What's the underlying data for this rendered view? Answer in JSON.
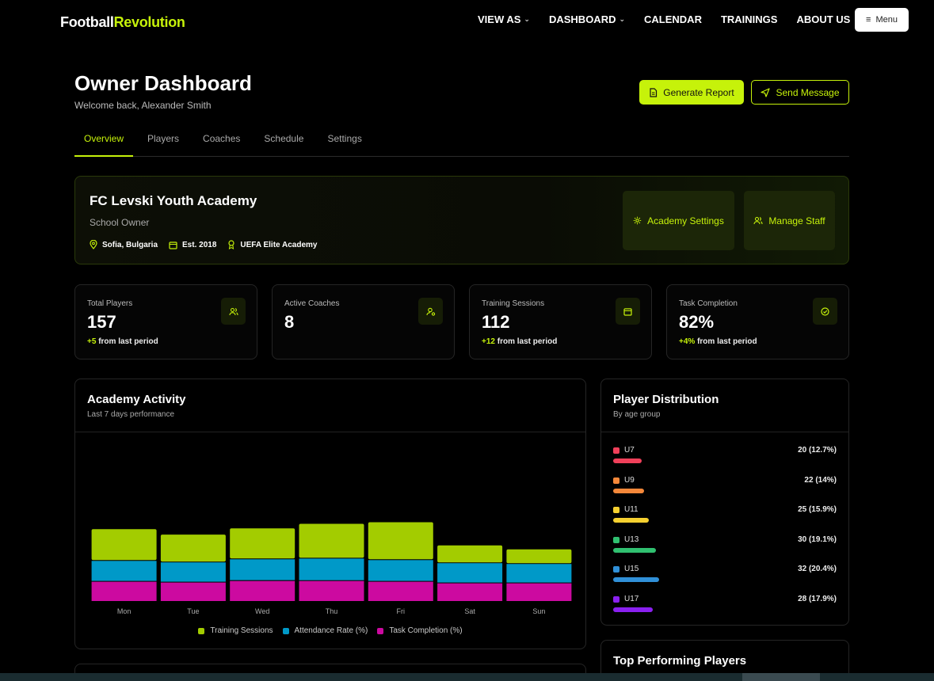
{
  "nav": {
    "logo_a": "Football",
    "logo_b": "Revolution",
    "links": [
      {
        "label": "VIEW AS",
        "dropdown": true
      },
      {
        "label": "DASHBOARD",
        "dropdown": true
      },
      {
        "label": "CALENDAR",
        "dropdown": false
      },
      {
        "label": "TRAININGS",
        "dropdown": false
      },
      {
        "label": "ABOUT US",
        "dropdown": false
      }
    ],
    "menu_label": "Menu"
  },
  "header": {
    "title": "Owner Dashboard",
    "welcome": "Welcome back, Alexander Smith",
    "generate_label": "Generate Report",
    "send_label": "Send Message"
  },
  "tabs": [
    {
      "label": "Overview",
      "active": true
    },
    {
      "label": "Players",
      "active": false
    },
    {
      "label": "Coaches",
      "active": false
    },
    {
      "label": "Schedule",
      "active": false
    },
    {
      "label": "Settings",
      "active": false
    }
  ],
  "academy": {
    "name": "FC Levski Youth Academy",
    "role": "School Owner",
    "location": "Sofia, Bulgaria",
    "established": "Est. 2018",
    "accreditation": "UEFA Elite Academy",
    "settings_label": "Academy Settings",
    "staff_label": "Manage Staff"
  },
  "stats": [
    {
      "label": "Total Players",
      "value": "157",
      "change": "+5",
      "suffix": "from last period",
      "icon": "users-icon"
    },
    {
      "label": "Active Coaches",
      "value": "8",
      "change": "",
      "suffix": "",
      "icon": "coach-icon"
    },
    {
      "label": "Training Sessions",
      "value": "112",
      "change": "+12",
      "suffix": "from last period",
      "icon": "calendar-icon"
    },
    {
      "label": "Task Completion",
      "value": "82%",
      "change": "+4%",
      "suffix": "from last period",
      "icon": "check-circle-icon"
    }
  ],
  "activity": {
    "title": "Academy Activity",
    "subtitle": "Last 7 days performance"
  },
  "chart_data": {
    "type": "bar",
    "stacked": true,
    "categories": [
      "Mon",
      "Tue",
      "Wed",
      "Thu",
      "Fri",
      "Sat",
      "Sun"
    ],
    "series": [
      {
        "name": "Task Completion (%)",
        "color": "#cc0aa0",
        "values": [
          26,
          25,
          27,
          27,
          26,
          24,
          24
        ]
      },
      {
        "name": "Attendance Rate (%)",
        "color": "#0099c8",
        "values": [
          27,
          26,
          28,
          29,
          28,
          26,
          25
        ]
      },
      {
        "name": "Training Sessions",
        "color": "#a3cc00",
        "values": [
          41,
          36,
          40,
          45,
          49,
          23,
          19
        ]
      }
    ],
    "ylim": [
      0,
      205
    ],
    "grid": false,
    "legend": "bottom"
  },
  "distribution": {
    "title": "Player Distribution",
    "subtitle": "By age group",
    "groups": [
      {
        "name": "U7",
        "label": "20 (12.7%)",
        "pct": 12.7,
        "color": "#f0405a"
      },
      {
        "name": "U9",
        "label": "22 (14%)",
        "pct": 14,
        "color": "#f5883a"
      },
      {
        "name": "U11",
        "label": "25 (15.9%)",
        "pct": 15.9,
        "color": "#f5d030"
      },
      {
        "name": "U13",
        "label": "30 (19.1%)",
        "pct": 19.1,
        "color": "#30c070"
      },
      {
        "name": "U15",
        "label": "32 (20.4%)",
        "pct": 20.4,
        "color": "#3090d8"
      },
      {
        "name": "U17",
        "label": "28 (17.9%)",
        "pct": 17.9,
        "color": "#8a20f0"
      }
    ]
  },
  "top_players": {
    "title": "Top Performing Players"
  }
}
